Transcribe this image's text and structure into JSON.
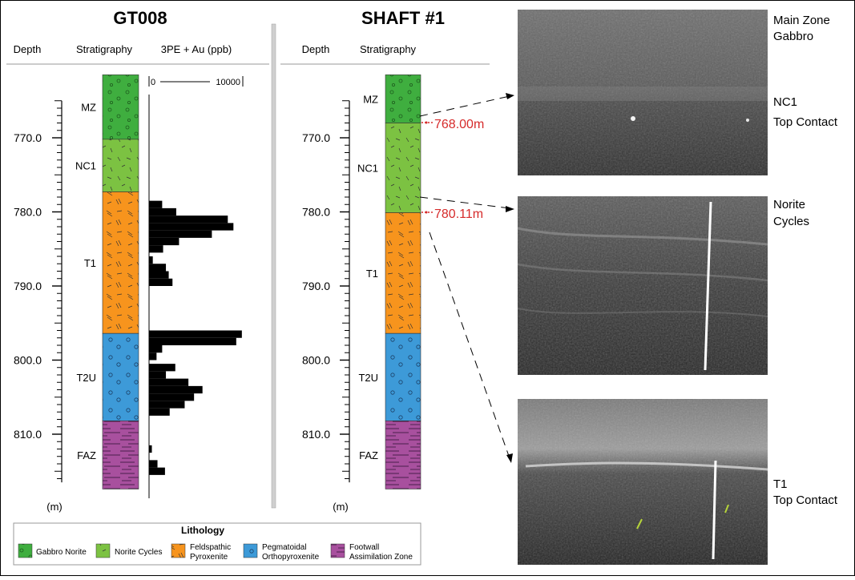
{
  "gt008": {
    "title": "GT008",
    "headers": {
      "depth": "Depth",
      "stratigraphy": "Stratigraphy",
      "assay": "3PE + Au (ppb)"
    },
    "scale": {
      "min": "0",
      "max": "10000"
    },
    "depth_labels": [
      "770.0",
      "780.0",
      "790.0",
      "800.0",
      "810.0"
    ],
    "unit": "(m)",
    "units": [
      {
        "code": "MZ",
        "lithology": "gabbro"
      },
      {
        "code": "NC1",
        "lithology": "norite"
      },
      {
        "code": "T1",
        "lithology": "feldspathic"
      },
      {
        "code": "T2U",
        "lithology": "pegmatoidal"
      },
      {
        "code": "FAZ",
        "lithology": "footwall"
      }
    ]
  },
  "shaft": {
    "title": "SHAFT #1",
    "headers": {
      "depth": "Depth",
      "stratigraphy": "Stratigraphy"
    },
    "depth_labels": [
      "770.0",
      "780.0",
      "790.0",
      "800.0",
      "810.0"
    ],
    "unit": "(m)",
    "units": [
      {
        "code": "MZ",
        "lithology": "gabbro"
      },
      {
        "code": "NC1",
        "lithology": "norite"
      },
      {
        "code": "T1",
        "lithology": "feldspathic"
      },
      {
        "code": "T2U",
        "lithology": "pegmatoidal"
      },
      {
        "code": "FAZ",
        "lithology": "footwall"
      }
    ],
    "contacts": [
      "768.00m",
      "780.11m"
    ]
  },
  "photos": [
    {
      "label_top": "Main Zone",
      "label_top2": "Gabbro",
      "label_bottom": "NC1",
      "label_bottom2": "Top Contact"
    },
    {
      "label_top": "Norite",
      "label_top2": "Cycles"
    },
    {
      "label_bottom": "T1",
      "label_bottom2": "Top Contact"
    }
  ],
  "legend": {
    "title": "Lithology",
    "items": [
      {
        "label": "Gabbro Norite",
        "label2": ""
      },
      {
        "label": "Norite Cycles",
        "label2": ""
      },
      {
        "label": "Feldspathic",
        "label2": "Pyroxenite"
      },
      {
        "label": "Pegmatoidal",
        "label2": "Orthopyroxenite"
      },
      {
        "label": "Footwall",
        "label2": "Assimilation Zone"
      }
    ]
  },
  "colors": {
    "gabbro": "#3fae3f",
    "norite": "#7cc242",
    "feldspathic": "#f7941d",
    "pegmatoidal": "#3d9ad8",
    "footwall": "#a8509e",
    "contact": "#d62b2b",
    "bar": "#000000"
  },
  "chart_data": {
    "type": "bar",
    "title": "3PE + Au (ppb)",
    "orientation": "horizontal",
    "xlim": [
      0,
      10000
    ],
    "ylim": [
      763,
      817
    ],
    "ylabel": "Depth (m)",
    "series": [
      {
        "values": [
          {
            "depth": 779.0,
            "ppb": 1400
          },
          {
            "depth": 780.0,
            "ppb": 2900
          },
          {
            "depth": 781.0,
            "ppb": 8400
          },
          {
            "depth": 782.0,
            "ppb": 9000
          },
          {
            "depth": 783.0,
            "ppb": 6700
          },
          {
            "depth": 784.0,
            "ppb": 3200
          },
          {
            "depth": 785.0,
            "ppb": 1500
          },
          {
            "depth": 786.5,
            "ppb": 400
          },
          {
            "depth": 787.5,
            "ppb": 1800
          },
          {
            "depth": 788.5,
            "ppb": 2100
          },
          {
            "depth": 789.5,
            "ppb": 2500
          },
          {
            "depth": 796.5,
            "ppb": 9900
          },
          {
            "depth": 797.5,
            "ppb": 9300
          },
          {
            "depth": 798.5,
            "ppb": 1400
          },
          {
            "depth": 799.5,
            "ppb": 800
          },
          {
            "depth": 801.0,
            "ppb": 2800
          },
          {
            "depth": 802.0,
            "ppb": 1800
          },
          {
            "depth": 803.0,
            "ppb": 4200
          },
          {
            "depth": 804.0,
            "ppb": 5700
          },
          {
            "depth": 805.0,
            "ppb": 4800
          },
          {
            "depth": 806.0,
            "ppb": 3800
          },
          {
            "depth": 807.0,
            "ppb": 2200
          },
          {
            "depth": 812.0,
            "ppb": 300
          },
          {
            "depth": 814.0,
            "ppb": 900
          },
          {
            "depth": 815.0,
            "ppb": 1700
          }
        ]
      }
    ]
  }
}
